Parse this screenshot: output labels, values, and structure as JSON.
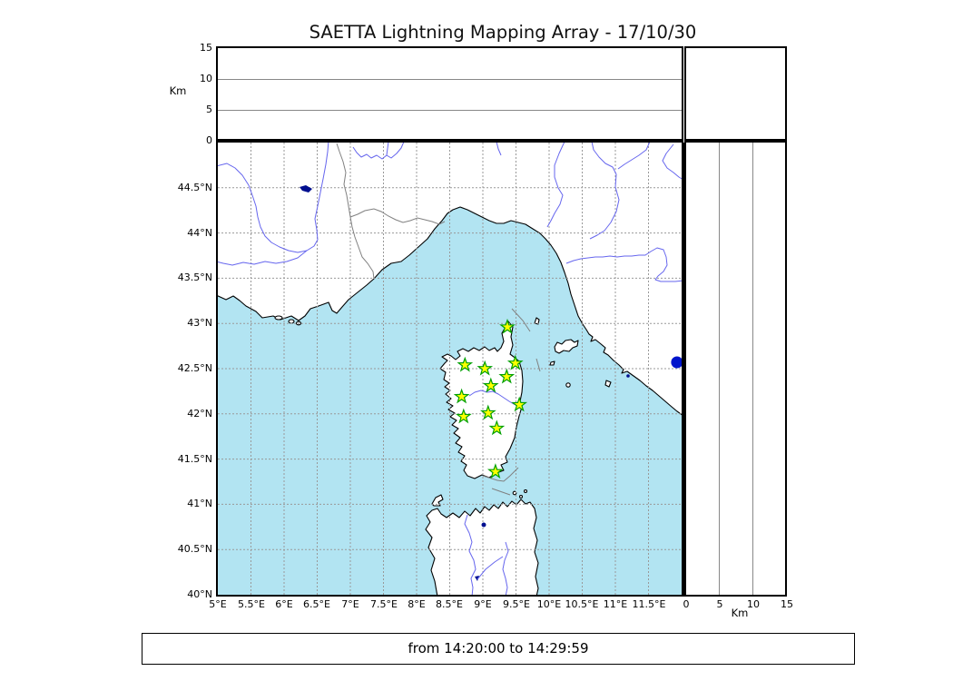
{
  "chart_data": {
    "type": "geo-scatter",
    "title": "SAETTA Lightning Mapping Array - 17/10/30",
    "time_range": "from 14:20:00 to 14:29:59",
    "map_panel": {
      "lon_range": [
        5,
        12
      ],
      "lat_range": [
        40,
        45
      ],
      "lon_gridlines": [
        5.5,
        6,
        6.5,
        7,
        7.5,
        8,
        8.5,
        9,
        9.5,
        10,
        10.5,
        11,
        11.5
      ],
      "lat_gridlines": [
        44.5,
        44,
        43.5,
        43,
        42.5,
        42,
        41.5,
        41,
        40.5
      ],
      "lon_tick_labels": [
        "5°E",
        "5.5°E",
        "6°E",
        "6.5°E",
        "7°E",
        "7.5°E",
        "8°E",
        "8.5°E",
        "9°E",
        "9.5°E",
        "10°E",
        "10.5°E",
        "11°E",
        "11.5°E"
      ],
      "lat_tick_labels": [
        "44.5°N",
        "44°N",
        "43.5°N",
        "43°N",
        "42.5°N",
        "42°N",
        "41.5°N",
        "41°N",
        "40.5°N",
        "40°N"
      ],
      "grid": true
    },
    "alt_panels": {
      "unit": "Km",
      "range_km": [
        0,
        15
      ],
      "tick_labels": [
        "0",
        "5",
        "10",
        "15"
      ],
      "gridlines_km": [
        5,
        10
      ]
    },
    "stations": [
      {
        "lon": 9.37,
        "lat": 42.96
      },
      {
        "lon": 8.73,
        "lat": 42.54
      },
      {
        "lon": 9.03,
        "lat": 42.5
      },
      {
        "lon": 9.49,
        "lat": 42.56
      },
      {
        "lon": 9.36,
        "lat": 42.41
      },
      {
        "lon": 9.12,
        "lat": 42.31
      },
      {
        "lon": 8.68,
        "lat": 42.19
      },
      {
        "lon": 9.55,
        "lat": 42.1
      },
      {
        "lon": 8.71,
        "lat": 41.97
      },
      {
        "lon": 9.08,
        "lat": 42.01
      },
      {
        "lon": 9.21,
        "lat": 41.84
      },
      {
        "lon": 9.19,
        "lat": 41.36
      }
    ],
    "sources": [
      {
        "lon": 11.93,
        "lat": 42.57
      }
    ],
    "colors": {
      "sea": "#b2e4f2",
      "land": "#ffffff",
      "coastline": "#000000",
      "river": "#6666ee",
      "lake": "#000f8f",
      "gridline": "#999999",
      "station_fill": "#ffff00",
      "station_stroke": "#00a000",
      "source_dot": "#0014cc"
    }
  }
}
